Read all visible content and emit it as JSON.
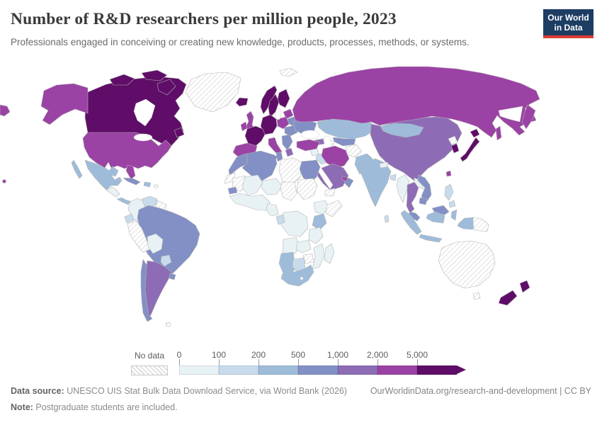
{
  "header": {
    "title": "Number of R&D researchers per million people, 2023",
    "subtitle": "Professionals engaged in conceiving or creating new knowledge, products, processes, methods, or systems.",
    "logo": {
      "line1": "Our World",
      "line2": "in Data",
      "bg_color": "#1d3d63",
      "accent_color": "#dc3d33"
    }
  },
  "legend": {
    "no_data_label": "No data",
    "tick_labels": [
      "0",
      "100",
      "200",
      "500",
      "1,000",
      "2,000",
      "5,000"
    ],
    "buckets": [
      {
        "key": "0-100",
        "color": "#e8f2f5"
      },
      {
        "key": "100-200",
        "color": "#c7dbec"
      },
      {
        "key": "200-500",
        "color": "#9ebcda"
      },
      {
        "key": "500-1000",
        "color": "#8290c6"
      },
      {
        "key": "1000-2000",
        "color": "#8d6cb5"
      },
      {
        "key": "2000-5000",
        "color": "#9b42a5"
      },
      {
        "key": "5000+",
        "color": "#5f0d68"
      }
    ],
    "no_data_hatch_color": "#d9d9d9"
  },
  "footer": {
    "source_label": "Data source:",
    "source_text": " UNESCO UIS Stat Bulk Data Download Service, via World Bank (2026)",
    "link_text": "OurWorldinData.org/research-and-development | CC BY",
    "note_label": "Note:",
    "note_text": " Postgraduate students are included."
  },
  "chart_data": {
    "type": "choropleth",
    "title": "Number of R&D researchers per million people, 2023",
    "unit": "R&D researchers per million people",
    "year": 2023,
    "scale_breaks": [
      0,
      100,
      200,
      500,
      1000,
      2000,
      5000
    ],
    "scale_open_ended_top": true,
    "legend_position": "bottom",
    "regions": {
      "greenland": "no-data",
      "iceland": "5000+",
      "canada": "5000+",
      "usa": "2000-5000",
      "hawaii": "2000-5000",
      "mexico": "200-500",
      "central-america": "0-100",
      "panama": "200-500",
      "cuba": "500-1000",
      "hispaniola": "200-500",
      "puerto-rico": "no-data",
      "colombia": "0-100",
      "venezuela": "100-200",
      "guyana": "no-data",
      "ecuador": "100-200",
      "peru": "no-data",
      "brazil": "500-1000",
      "bolivia": "0-100",
      "paraguay": "100-200",
      "uruguay": "500-1000",
      "argentina": "1000-2000",
      "chile": "500-1000",
      "falklands": "no-data",
      "uk": "2000-5000",
      "ireland": "2000-5000",
      "norway": "5000+",
      "sweden": "5000+",
      "finland": "5000+",
      "denmark": "5000+",
      "germany": "5000+",
      "france": "5000+",
      "iberia": "2000-5000",
      "italy": "2000-5000",
      "poland": "2000-5000",
      "baltics": "2000-5000",
      "belarus": "500-1000",
      "ukraine": "500-1000",
      "romania-hungary": "500-1000",
      "balkans": "500-1000",
      "greece": "1000-2000",
      "svalbard": "no-data",
      "russia": "2000-5000",
      "caucasus": "1000-2000",
      "kazakhstan": "200-500",
      "uzbekistan": "500-1000",
      "turkmenistan": "no-data",
      "turkey": "2000-5000",
      "syria": "0-100",
      "iraq": "100-200",
      "iran": "2000-5000",
      "afghanistan": "no-data",
      "pakistan": "200-500",
      "saudi-arabia": "1000-2000",
      "yemen": "no-data",
      "oman": "500-1000",
      "uae": "2000-5000",
      "morocco": "500-1000",
      "western-sahara": "no-data",
      "algeria": "500-1000",
      "tunisia": "500-1000",
      "libya": "no-data",
      "egypt": "500-1000",
      "mauritania": "no-data",
      "mali": "0-100",
      "niger": "0-100",
      "chad": "no-data",
      "sudan": "no-data",
      "senegal": "500-1000",
      "west-africa": "0-100",
      "cameroon": "0-100",
      "gabon": "100-200",
      "ethiopia": "0-100",
      "somalia": "no-data",
      "kenya": "200-500",
      "drc": "0-100",
      "tanzania": "0-100",
      "angola": "0-100",
      "zambia": "0-100",
      "zimbabwe": "no-data",
      "mozambique": "0-100",
      "namibia": "200-500",
      "botswana": "100-200",
      "south-africa": "200-500",
      "madagascar": "0-100",
      "india": "200-500",
      "nepal": "0-100",
      "bangladesh": "100-200",
      "sri-lanka": "100-200",
      "myanmar": "0-100",
      "thailand": "1000-2000",
      "laos": "0-100",
      "vietnam": "500-1000",
      "cambodia": "500-1000",
      "malaysia": "500-1000",
      "indonesia": "200-500",
      "philippines": "100-200",
      "china": "1000-2000",
      "mongolia": "200-500",
      "north-korea": "no-data",
      "south-korea": "5000+",
      "japan": "5000+",
      "taiwan": "2000-5000",
      "png": "no-data",
      "australia": "no-data",
      "new-zealand": "5000+"
    }
  }
}
